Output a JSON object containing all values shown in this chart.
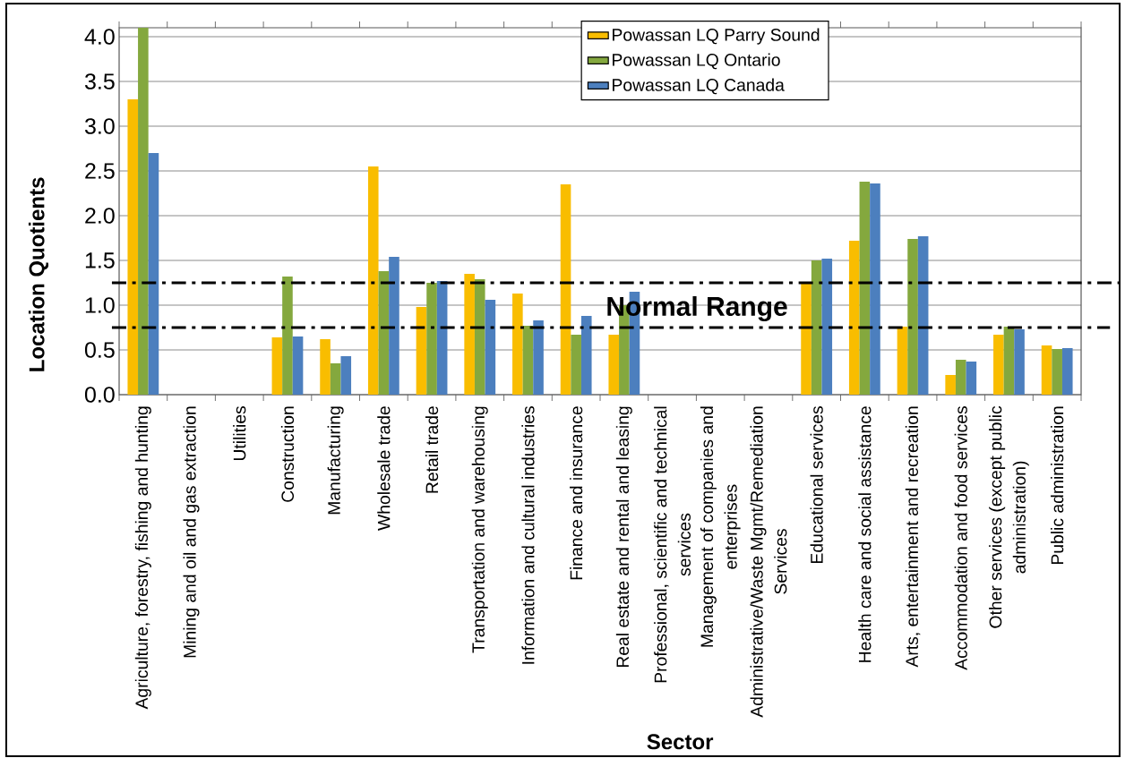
{
  "chart_data": {
    "type": "bar",
    "xlabel": "Sector",
    "ylabel": "Location Quotients",
    "categories": [
      "Agriculture, forestry, fishing and hunting",
      "Mining and oil and gas extraction",
      "Utilities",
      "Construction",
      "Manufacturing",
      "Wholesale trade",
      "Retail trade",
      "Transportation and warehousing",
      "Information and cultural industries",
      "Finance and insurance",
      "Real estate and rental and leasing",
      "Professional, scientific and technical services",
      "Management of companies and enterprises",
      "Administrative/Waste Mgmt/Remediation Services",
      "Educational services",
      "Health care and social assistance",
      "Arts, entertainment and recreation",
      "Accommodation and food services",
      "Other services (except public administration)",
      "Public administration"
    ],
    "series": [
      {
        "name": "Powassan LQ Parry Sound",
        "color": "#f9bd00",
        "values": [
          3.3,
          null,
          null,
          0.64,
          0.62,
          2.55,
          0.98,
          1.35,
          1.13,
          2.35,
          0.67,
          null,
          null,
          null,
          1.25,
          1.72,
          0.76,
          0.22,
          0.67,
          0.55
        ]
      },
      {
        "name": "Powassan LQ Ontario",
        "color": "#84a83e",
        "values": [
          4.1,
          null,
          null,
          1.32,
          0.35,
          1.38,
          1.25,
          1.29,
          0.77,
          0.67,
          1.0,
          null,
          null,
          null,
          1.5,
          2.38,
          1.74,
          0.39,
          0.76,
          0.51
        ]
      },
      {
        "name": "Powassan LQ Canada",
        "color": "#4c7fbe",
        "values": [
          2.7,
          null,
          null,
          0.65,
          0.43,
          1.54,
          1.27,
          1.06,
          0.83,
          0.88,
          1.15,
          null,
          null,
          null,
          1.52,
          2.36,
          1.77,
          0.37,
          0.73,
          0.52
        ]
      }
    ],
    "ylim": [
      0,
      4.1
    ],
    "yticks": [
      {
        "value": 0,
        "label": "0.0"
      },
      0.5,
      {
        "value": 1,
        "label": "1.0"
      },
      1.5,
      {
        "value": 2,
        "label": "2.0"
      },
      2.5,
      {
        "value": 3,
        "label": "3.0"
      },
      3.5,
      {
        "value": 4,
        "label": "4.0"
      }
    ],
    "grid": "y",
    "legend": "top",
    "ref_lines": [
      {
        "axis": "y",
        "value": 1.25,
        "line_style": "dashdot",
        "color": "#000000"
      },
      {
        "axis": "y",
        "value": 0.75,
        "line_style": "dashdot",
        "color": "#000000"
      }
    ],
    "annotations": [
      "Normal Range"
    ]
  }
}
